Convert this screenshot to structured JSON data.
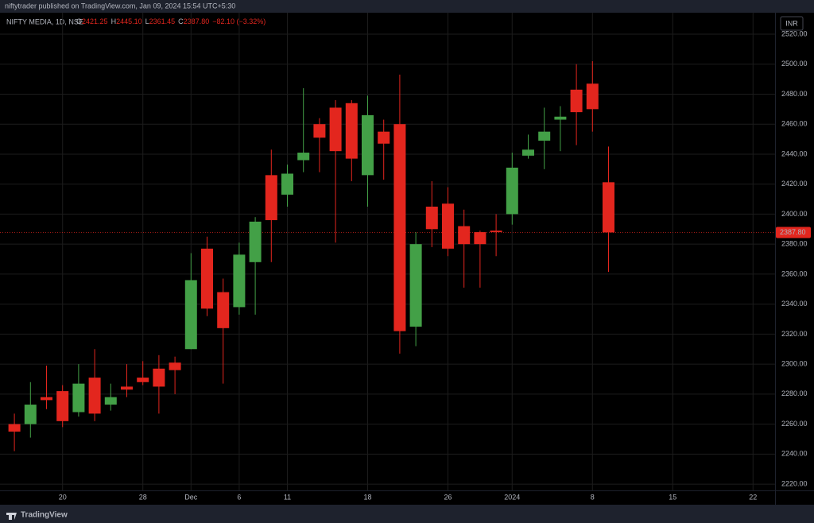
{
  "header": {
    "published": "niftytrader published on TradingView.com, Jan 09, 2024 15:54 UTC+5:30",
    "footer": "TradingView"
  },
  "chart_data": {
    "type": "candlestick",
    "title": "NIFTY MEDIA, 1D, NSE",
    "ohlc_legend": [
      {
        "label": "O",
        "value": "2421.25"
      },
      {
        "label": "H",
        "value": "2445.10"
      },
      {
        "label": "L",
        "value": "2361.45"
      },
      {
        "label": "C",
        "value": "2387.80"
      }
    ],
    "change": "−82.10 (−3.32%)",
    "currency": "INR",
    "up_color": "#43a047",
    "down_color": "#e3261e",
    "categories": [
      null,
      null,
      null,
      "20",
      null,
      null,
      null,
      null,
      "28",
      null,
      null,
      "Dec",
      null,
      null,
      "6",
      null,
      null,
      "11",
      null,
      null,
      null,
      null,
      "18",
      null,
      null,
      null,
      null,
      "26",
      null,
      null,
      null,
      "2024",
      null,
      null,
      null,
      null,
      "8",
      null,
      null,
      null,
      null,
      "15",
      null,
      null,
      null,
      null,
      "22"
    ],
    "open": [
      2260,
      2260,
      2278,
      2282,
      2268,
      2291,
      2273,
      2285,
      2291,
      2297,
      2301,
      2310,
      2377,
      2348,
      2338,
      2368,
      2426,
      2413,
      2436,
      2460,
      2471,
      2474,
      2426,
      2455,
      2460,
      2325,
      2405,
      2407,
      2392,
      2388,
      2389,
      2400,
      2439,
      2449,
      2463,
      2483,
      2487,
      2421.25,
      null,
      null,
      null,
      null,
      null,
      null,
      null,
      null,
      null
    ],
    "high": [
      2267,
      2288,
      2299,
      2286,
      2300,
      2310,
      2287,
      2300,
      2302,
      2306,
      2305,
      2374,
      2385,
      2357,
      2381,
      2398,
      2443,
      2433,
      2484,
      2464,
      2476,
      2476,
      2479,
      2463,
      2493,
      2388,
      2422,
      2418,
      2403,
      2389,
      2400,
      2441,
      2453,
      2471,
      2472,
      2500,
      2502,
      2445.1,
      null,
      null,
      null,
      null,
      null,
      null,
      null,
      null,
      null
    ],
    "low": [
      2242,
      2251,
      2270,
      2258,
      2265,
      2262,
      2269,
      2278,
      2286,
      2267,
      2280,
      2310,
      2332,
      2287,
      2333,
      2333,
      2368,
      2405,
      2428,
      2428,
      2381,
      2422,
      2405,
      2423,
      2307,
      2312,
      2378,
      2372,
      2351,
      2351,
      2372,
      2393,
      2437,
      2430,
      2442,
      2446,
      2455,
      2361.45,
      null,
      null,
      null,
      null,
      null,
      null,
      null,
      null,
      null
    ],
    "close": [
      2255,
      2273,
      2276,
      2262,
      2287,
      2267,
      2278,
      2283,
      2288,
      2285,
      2296,
      2356,
      2337,
      2324,
      2373,
      2395,
      2396,
      2427,
      2441,
      2451,
      2442,
      2437,
      2466,
      2447,
      2322,
      2380,
      2390,
      2377,
      2380,
      2380,
      2388,
      2431,
      2443,
      2455,
      2465,
      2468,
      2470,
      2387.8,
      null,
      null,
      null,
      null,
      null,
      null,
      null,
      null,
      null
    ],
    "ylim": [
      2215.8,
      2534.3
    ],
    "yticks": [
      {
        "value": 2220,
        "label": "2220.00"
      },
      {
        "value": 2240,
        "label": "2240.00"
      },
      {
        "value": 2260,
        "label": "2260.00"
      },
      {
        "value": 2280,
        "label": "2280.00"
      },
      {
        "value": 2300,
        "label": "2300.00"
      },
      {
        "value": 2320,
        "label": "2320.00"
      },
      {
        "value": 2340,
        "label": "2340.00"
      },
      {
        "value": 2360,
        "label": "2360.00"
      },
      {
        "value": 2380,
        "label": "2380.00"
      },
      {
        "value": 2400,
        "label": "2400.00"
      },
      {
        "value": 2420,
        "label": "2420.00"
      },
      {
        "value": 2440,
        "label": "2440.00"
      },
      {
        "value": 2460,
        "label": "2460.00"
      },
      {
        "value": 2480,
        "label": "2480.00"
      },
      {
        "value": 2500,
        "label": "2500.00"
      },
      {
        "value": 2520,
        "label": "2520.00"
      }
    ],
    "grid": true
  }
}
